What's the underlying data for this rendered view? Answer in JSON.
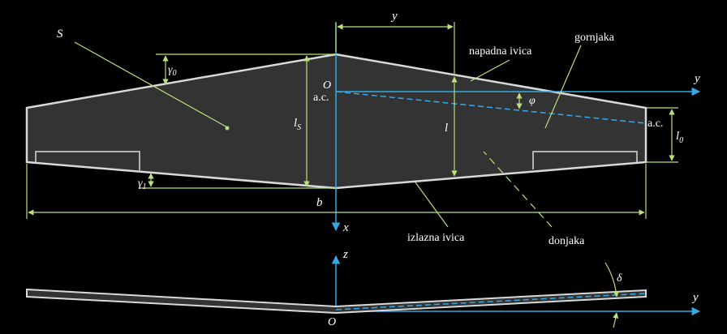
{
  "labels": {
    "S": "S",
    "gamma0": "γ",
    "gamma0_sub": "0",
    "gamma1": "γ",
    "gamma1_sub": "1",
    "y_dim": "y",
    "y_axis": "y",
    "y_axis_side": "y",
    "x_axis": "x",
    "z_axis": "z",
    "O_top": "O",
    "O_side": "O",
    "ac_left": "a.c.",
    "ac_right": "a.c.",
    "lS": "l",
    "lS_sub": "S",
    "l": "l",
    "l0": "l",
    "l0_sub": "0",
    "b": "b",
    "phi": "φ",
    "delta": "δ",
    "napadna_ivica": "napadna ivica",
    "gornjaka": "gornjaka",
    "izlazna_ivica": "izlazna ivica",
    "donjaka": "donjaka"
  },
  "colors": {
    "wing_fill": "#333333",
    "wing_edge": "#d9d9d9",
    "dim_green": "#b9e07a",
    "axis_blue": "#35a9e6",
    "text": "#ffffff",
    "background": "#000000"
  }
}
